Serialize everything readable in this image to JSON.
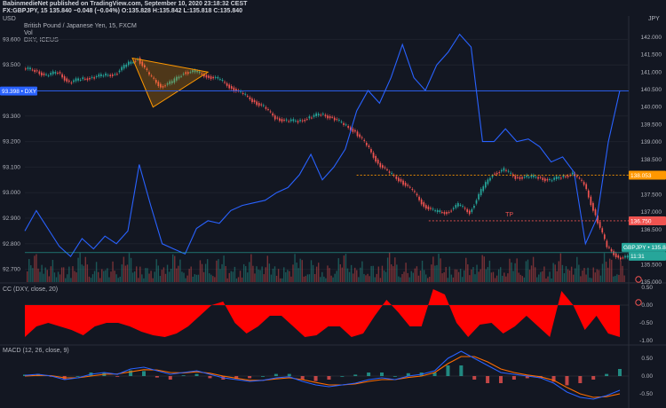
{
  "header": {
    "publisher_line": "BabinmedieNet published on TradingView.com, September 10, 2020 23:18:32 CEST",
    "symbol_line": "FX:GBPJPY, 15 135.840 −0.048 (−0.04%) O:135.828 H:135.842 L:135.818 C:135.840",
    "left_axis_label": "USD",
    "right_axis_label": "JPY",
    "main_title": "British Pound / Japanese Yen, 15, FXCM",
    "vol_label": "Vol",
    "dxy_label": "DXY, ICEUS"
  },
  "badges": {
    "dxy": "93.398 • DXY",
    "level_1": "138.053",
    "level_2": "136.750",
    "gbpjpy": "GBPJPY • 135.840",
    "time_left": "11:31",
    "tp_label": "TP"
  },
  "colors": {
    "background": "#131722",
    "dxy_line": "#2962ff",
    "candle_up": "#26a69a",
    "candle_down": "#ef5350",
    "level_line": "#ff9800",
    "cc_fill": "#ff0000",
    "macd_line": "#2962ff",
    "signal_line": "#ff6d00"
  },
  "panels": {
    "cc_title": "CC (DXY, close, 20)",
    "macd_title": "MACD (12, 26, close, 9)"
  },
  "chart_data": [
    {
      "type": "line",
      "name": "GBPJPY and DXY price panel",
      "y_left_ticks": [
        "93.600",
        "93.500",
        "93.400",
        "93.300",
        "93.200",
        "93.100",
        "93.000",
        "92.900",
        "92.800",
        "92.700"
      ],
      "y_right_ticks": [
        "142.000",
        "141.500",
        "141.000",
        "140.500",
        "140.000",
        "139.500",
        "139.000",
        "138.500",
        "138.000",
        "137.500",
        "137.000",
        "136.500",
        "136.000",
        "135.500",
        "135.000"
      ],
      "y_left_range": [
        92.65,
        93.65
      ],
      "y_right_range": [
        135.0,
        142.3
      ],
      "series": [
        {
          "name": "GBPJPY",
          "values": [
            141.1,
            141.05,
            140.9,
            141.0,
            140.7,
            140.8,
            140.85,
            140.9,
            140.95,
            141.2,
            141.4,
            140.9,
            140.6,
            140.7,
            141.0,
            141.0,
            140.9,
            140.8,
            140.6,
            140.4,
            140.2,
            140.0,
            139.7,
            139.6,
            139.6,
            139.7,
            139.8,
            139.7,
            139.5,
            139.3,
            138.9,
            138.4,
            138.1,
            137.9,
            137.6,
            137.2,
            137.0,
            137.0,
            137.2,
            137.0,
            137.6,
            138.1,
            138.2,
            138.0,
            138.0,
            138.0,
            137.9,
            138.0,
            138.1,
            137.8,
            136.9,
            136.0,
            135.7
          ]
        },
        {
          "name": "DXY",
          "values": [
            92.85,
            92.93,
            92.86,
            92.79,
            92.75,
            92.82,
            92.78,
            92.83,
            92.8,
            92.85,
            93.11,
            92.95,
            92.8,
            92.78,
            92.76,
            92.86,
            92.89,
            92.88,
            92.93,
            92.95,
            92.96,
            92.97,
            93.0,
            93.02,
            93.07,
            93.15,
            93.05,
            93.1,
            93.17,
            93.32,
            93.4,
            93.35,
            93.45,
            93.58,
            93.45,
            93.4,
            93.5,
            93.55,
            93.62,
            93.57,
            93.2,
            93.2,
            93.25,
            93.2,
            93.21,
            93.18,
            93.12,
            93.14,
            93.08,
            92.8,
            92.9,
            93.2,
            93.4
          ]
        }
      ],
      "levels": [
        138.053,
        136.75
      ]
    },
    {
      "type": "area",
      "name": "CC (DXY, close, 20)",
      "y_ticks": [
        "0.50",
        "0.00",
        "-0.50",
        "-1.00"
      ],
      "ylim": [
        -1.0,
        0.5
      ],
      "values": [
        -0.9,
        -0.6,
        -0.5,
        -0.6,
        -0.7,
        -0.85,
        -0.6,
        -0.5,
        -0.5,
        -0.6,
        -0.75,
        -0.85,
        -0.9,
        -0.8,
        -0.6,
        -0.3,
        0.0,
        0.1,
        -0.5,
        -0.8,
        -0.6,
        -0.3,
        -0.3,
        -0.6,
        -0.9,
        -0.85,
        -0.6,
        -0.6,
        -0.9,
        -0.8,
        -0.3,
        0.15,
        -0.2,
        -0.6,
        -0.6,
        0.45,
        0.3,
        -0.5,
        -0.9,
        -0.55,
        -0.5,
        -0.8,
        -0.6,
        -0.3,
        -0.6,
        -0.9,
        0.4,
        0.0,
        -0.7,
        -0.3,
        -0.8,
        -0.9
      ]
    },
    {
      "type": "line",
      "name": "MACD (12, 26, close, 9)",
      "y_ticks": [
        "0.50",
        "0.00",
        "-0.50"
      ],
      "ylim": [
        -0.85,
        0.85
      ],
      "series": [
        {
          "name": "MACD",
          "values": [
            0.02,
            0.05,
            0.0,
            -0.1,
            -0.05,
            0.05,
            0.1,
            0.05,
            0.2,
            0.25,
            0.15,
            0.05,
            0.1,
            0.15,
            0.05,
            -0.05,
            -0.1,
            -0.15,
            -0.12,
            -0.05,
            -0.02,
            -0.15,
            -0.25,
            -0.3,
            -0.25,
            -0.2,
            -0.1,
            -0.05,
            -0.1,
            0.0,
            0.05,
            0.15,
            0.5,
            0.7,
            0.5,
            0.3,
            0.1,
            0.05,
            0.0,
            -0.05,
            -0.2,
            -0.45,
            -0.6,
            -0.65,
            -0.55,
            -0.4
          ]
        },
        {
          "name": "Signal",
          "values": [
            0.0,
            0.02,
            0.01,
            -0.05,
            -0.05,
            0.0,
            0.05,
            0.06,
            0.12,
            0.18,
            0.17,
            0.1,
            0.09,
            0.12,
            0.08,
            0.0,
            -0.06,
            -0.12,
            -0.12,
            -0.08,
            -0.05,
            -0.1,
            -0.18,
            -0.25,
            -0.25,
            -0.22,
            -0.15,
            -0.1,
            -0.1,
            -0.04,
            0.0,
            0.1,
            0.35,
            0.55,
            0.55,
            0.4,
            0.2,
            0.1,
            0.03,
            -0.02,
            -0.12,
            -0.32,
            -0.5,
            -0.6,
            -0.58,
            -0.5
          ]
        }
      ]
    }
  ]
}
